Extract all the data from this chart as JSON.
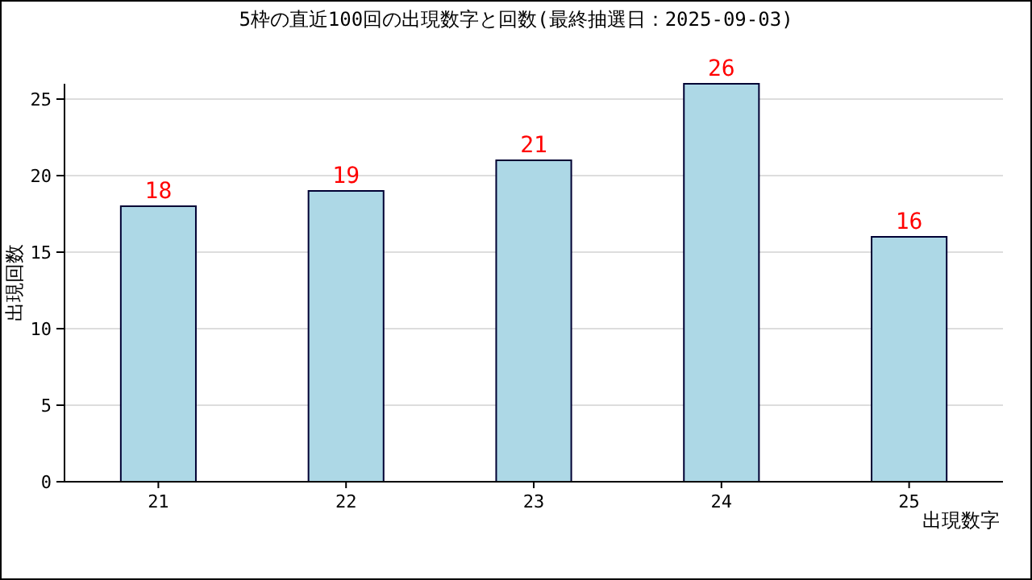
{
  "chart_data": {
    "type": "bar",
    "title": "5枠の直近100回の出現数字と回数(最終抽選日：2025-09-03)",
    "xlabel": "出現数字",
    "ylabel": "出現回数",
    "categories": [
      "21",
      "22",
      "23",
      "24",
      "25"
    ],
    "values": [
      18,
      19,
      21,
      26,
      16
    ],
    "color": "#add8e6",
    "data_labels": true,
    "ylim": [
      0,
      26
    ],
    "yticks": [
      0,
      5,
      10,
      15,
      20,
      25
    ],
    "grid": "y"
  }
}
